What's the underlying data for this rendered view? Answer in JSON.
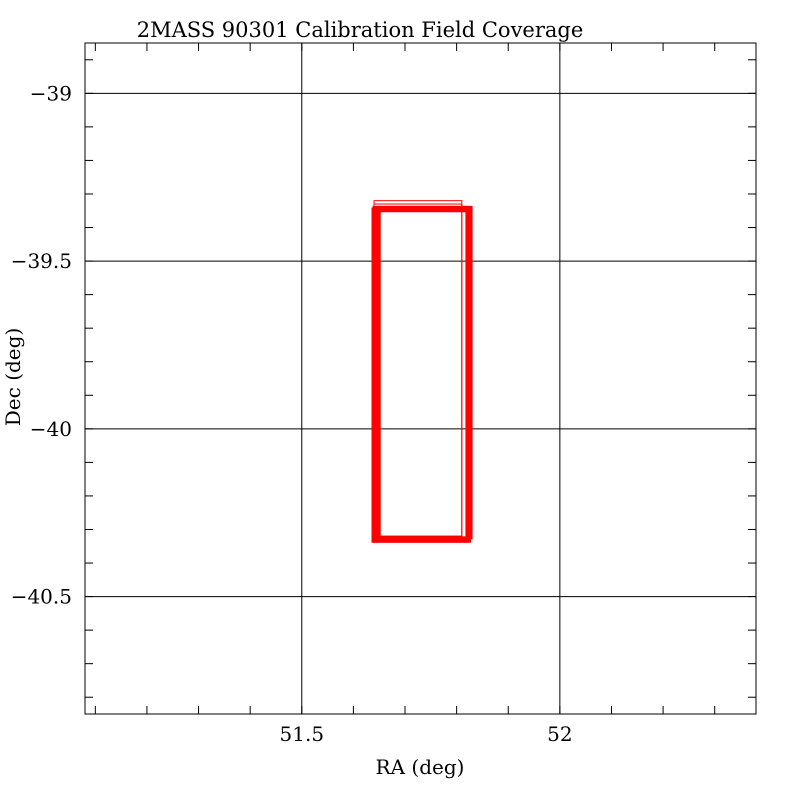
{
  "chart_data": {
    "type": "line",
    "title": "2MASS 90301 Calibration Field Coverage",
    "xlabel": "RA (deg)",
    "ylabel": "Dec (deg)",
    "xlim": [
      51.08,
      52.38
    ],
    "ylim": [
      -40.85,
      -38.85
    ],
    "xticks_major": [
      51.5,
      52
    ],
    "xtick_labels": [
      "51.5",
      "52"
    ],
    "yticks_major": [
      -39,
      -39.5,
      -40,
      -40.5
    ],
    "ytick_labels": [
      "−39",
      "−39.5",
      "−40",
      "−40.5"
    ],
    "xminor_step": 0.1,
    "yminor_step": 0.1,
    "grid": true,
    "series": [
      {
        "color": "#ff0000",
        "rectangles": [
          {
            "ra": [
              51.64,
              51.81
            ],
            "dec": [
              -40.32,
              -39.32
            ]
          },
          {
            "ra": [
              51.64,
              51.81
            ],
            "dec": [
              -40.32,
              -39.33
            ]
          },
          {
            "ra": [
              51.64,
              51.82
            ],
            "dec": [
              -40.33,
              -39.34
            ]
          },
          {
            "ra": [
              51.645,
              51.822
            ],
            "dec": [
              -40.33,
              -39.345
            ]
          },
          {
            "ra": [
              51.64,
              51.825
            ],
            "dec": [
              -40.335,
              -39.35
            ]
          },
          {
            "ra": [
              51.638,
              51.82
            ],
            "dec": [
              -40.335,
              -39.345
            ]
          },
          {
            "ra": [
              51.65,
              51.828
            ],
            "dec": [
              -40.325,
              -39.34
            ]
          }
        ]
      }
    ]
  }
}
